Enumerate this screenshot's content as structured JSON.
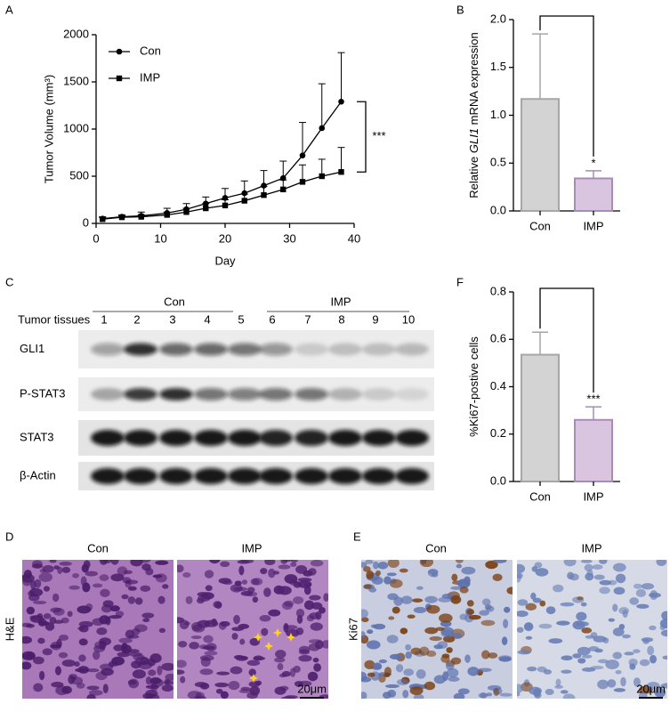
{
  "panels": {
    "a": "A",
    "b": "B",
    "c": "C",
    "d": "D",
    "e": "E",
    "f": "F"
  },
  "chart_data": [
    {
      "type": "line",
      "xlabel": "Day",
      "ylabel": "Tumor Volume (mm³)",
      "x": [
        1,
        4,
        7,
        11,
        14,
        17,
        20,
        23,
        26,
        29,
        32,
        35,
        38
      ],
      "xlim": [
        0,
        40
      ],
      "xticks": [
        0,
        10,
        20,
        30,
        40
      ],
      "ylim": [
        0,
        2000
      ],
      "yticks": [
        0,
        500,
        1000,
        1500,
        2000
      ],
      "series": [
        {
          "name": "Con",
          "color": "#000000",
          "marker": "circle",
          "values": [
            50,
            70,
            80,
            110,
            150,
            210,
            270,
            320,
            400,
            480,
            720,
            1010,
            1290
          ],
          "errors": [
            20,
            20,
            40,
            50,
            60,
            70,
            100,
            130,
            160,
            180,
            350,
            470,
            520
          ]
        },
        {
          "name": "IMP",
          "color": "#000000",
          "marker": "square",
          "values": [
            45,
            65,
            70,
            90,
            120,
            160,
            190,
            240,
            300,
            360,
            440,
            500,
            545
          ],
          "errors": [
            15,
            15,
            20,
            30,
            40,
            50,
            60,
            70,
            90,
            100,
            180,
            180,
            260
          ]
        }
      ],
      "significance": "***"
    },
    {
      "type": "bar",
      "ylabel": [
        "Relative ",
        "GLI1",
        " mRNA expression"
      ],
      "categories": [
        "Con",
        "IMP"
      ],
      "values": [
        1.17,
        0.34
      ],
      "errors": [
        0.68,
        0.08
      ],
      "colors": [
        "#d3d3d3",
        "#d9c5e0"
      ],
      "edge_colors": [
        "#a6a6a6",
        "#a98bb8"
      ],
      "ylim": [
        0,
        2
      ],
      "yticks": [
        {
          "value": 0,
          "label": "0.0"
        },
        0.5,
        {
          "value": 1,
          "label": "1.0"
        },
        1.5,
        {
          "value": 2,
          "label": "2.0"
        }
      ],
      "significance": "*"
    },
    {
      "type": "bar",
      "ylabel": [
        "%Ki67-postive cells"
      ],
      "categories": [
        "Con",
        "IMP"
      ],
      "values": [
        0.535,
        0.26
      ],
      "errors": [
        0.095,
        0.055
      ],
      "colors": [
        "#d3d3d3",
        "#d9c5e0"
      ],
      "edge_colors": [
        "#a6a6a6",
        "#a98bb8"
      ],
      "ylim": [
        0,
        0.8
      ],
      "yticks": [
        {
          "value": 0,
          "label": "0.0"
        },
        0.2,
        0.4,
        0.6,
        0.8
      ],
      "significance": "***"
    }
  ],
  "western_blot": {
    "groups": [
      "Con",
      "IMP"
    ],
    "row_header": "Tumor tissues",
    "lanes": [
      "1",
      "2",
      "3",
      "4",
      "5",
      "6",
      "7",
      "8",
      "9",
      "10"
    ],
    "rows": [
      "GLI1",
      "P-STAT3",
      "STAT3",
      "β-Actin"
    ]
  },
  "histology": {
    "d": {
      "columns": [
        "Con",
        "IMP"
      ],
      "stain": "H&E",
      "scale_bar": "20μm"
    },
    "e": {
      "columns": [
        "Con",
        "IMP"
      ],
      "stain": "Ki67",
      "scale_bar": "20μm"
    }
  }
}
